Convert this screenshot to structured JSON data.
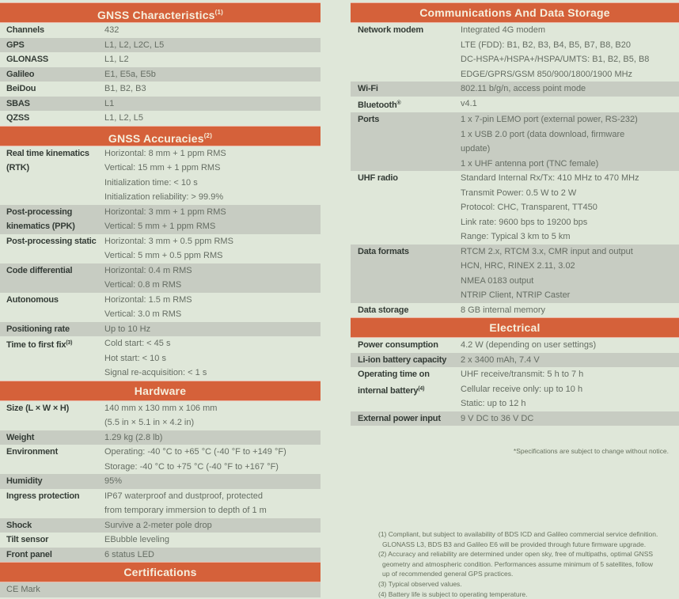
{
  "page": {
    "colors": {
      "bg": "#dfe7d9",
      "accent": "#d5613a",
      "header_text": "#f6efdd",
      "shaded_row": "#c7ccc2",
      "label": "#343c36",
      "value": "#656d63",
      "footnote": "#68725f"
    }
  },
  "left_column": {
    "sections": [
      {
        "title": "GNSS Characteristics",
        "title_sup": "(1)",
        "rows": [
          {
            "label": "Channels",
            "values": [
              "432"
            ],
            "shaded": false
          },
          {
            "label": "GPS",
            "values": [
              "L1, L2, L2C, L5"
            ],
            "shaded": true
          },
          {
            "label": "GLONASS",
            "values": [
              "L1, L2"
            ],
            "shaded": false
          },
          {
            "label": "Galileo",
            "values": [
              "E1, E5a, E5b"
            ],
            "shaded": true
          },
          {
            "label": "BeiDou",
            "values": [
              "B1, B2, B3"
            ],
            "shaded": false
          },
          {
            "label": "SBAS",
            "values": [
              "L1"
            ],
            "shaded": true
          },
          {
            "label": "QZSS",
            "values": [
              "L1, L2, L5"
            ],
            "shaded": false
          }
        ]
      },
      {
        "title": "GNSS Accuracies",
        "title_sup": "(2)",
        "rows": [
          {
            "label": "Real time kinematics (RTK)",
            "values": [
              "Horizontal: 8 mm + 1 ppm RMS",
              "Vertical: 15 mm + 1 ppm RMS",
              "Initialization time: < 10 s",
              "Initialization reliability: > 99.9%"
            ],
            "shaded": false
          },
          {
            "label": "Post-processing kinematics (PPK)",
            "values": [
              "Horizontal: 3 mm + 1 ppm RMS",
              "Vertical: 5 mm + 1 ppm RMS"
            ],
            "shaded": true
          },
          {
            "label": "Post-processing static",
            "values": [
              "Horizontal: 3 mm + 0.5 ppm RMS",
              "Vertical: 5 mm + 0.5 ppm RMS"
            ],
            "shaded": false
          },
          {
            "label": "Code differential",
            "values": [
              "Horizontal: 0.4 m RMS",
              "Vertical: 0.8 m RMS"
            ],
            "shaded": true
          },
          {
            "label": "Autonomous",
            "values": [
              "Horizontal: 1.5 m RMS",
              "Vertical: 3.0 m RMS"
            ],
            "shaded": false
          },
          {
            "label": "Positioning rate",
            "values": [
              "Up to 10 Hz"
            ],
            "shaded": true
          },
          {
            "label": "Time to first fix",
            "label_sup": "(3)",
            "values": [
              "Cold start: < 45 s",
              "Hot start: < 10 s",
              "Signal re-acquisition: < 1 s"
            ],
            "shaded": false
          }
        ]
      },
      {
        "title": "Hardware",
        "rows": [
          {
            "label": "Size (L × W × H)",
            "values": [
              "140 mm x 130 mm x 106 mm",
              "(5.5 in × 5.1 in × 4.2 in)"
            ],
            "shaded": false
          },
          {
            "label": "Weight",
            "values": [
              "1.29 kg (2.8 lb)"
            ],
            "shaded": true
          },
          {
            "label": "Environment",
            "values": [
              "Operating: -40 °C to +65 °C (-40 °F to +149 °F)",
              "Storage: -40 °C to +75 °C (-40 °F to +167 °F)"
            ],
            "shaded": false
          },
          {
            "label": "Humidity",
            "values": [
              "95%"
            ],
            "shaded": true
          },
          {
            "label": "Ingress protection",
            "values": [
              "IP67 waterproof and dustproof, protected",
              "from temporary immersion to depth of 1 m"
            ],
            "shaded": false
          },
          {
            "label": "Shock",
            "values": [
              "Survive a 2-meter pole drop"
            ],
            "shaded": true
          },
          {
            "label": "Tilt sensor",
            "values": [
              "EBubble leveling"
            ],
            "shaded": false
          },
          {
            "label": "Front panel",
            "values": [
              "6 status LED"
            ],
            "shaded": true
          }
        ]
      },
      {
        "title": "Certifications",
        "rows": [
          {
            "label": "",
            "values": [
              "CE Mark"
            ],
            "shaded": true,
            "full_width": true
          }
        ]
      }
    ]
  },
  "right_column": {
    "sections": [
      {
        "title": "Communications And Data Storage",
        "rows": [
          {
            "label": "Network modem",
            "values": [
              "Integrated 4G modem",
              "LTE (FDD): B1, B2, B3, B4, B5, B7, B8, B20",
              "DC-HSPA+/HSPA+/HSPA/UMTS: B1, B2, B5, B8",
              "EDGE/GPRS/GSM 850/900/1800/1900 MHz"
            ],
            "shaded": false
          },
          {
            "label": "Wi-Fi",
            "values": [
              "802.11 b/g/n, access point mode"
            ],
            "shaded": true
          },
          {
            "label": "Bluetooth",
            "label_sup": "®",
            "values": [
              "v4.1"
            ],
            "shaded": false
          },
          {
            "label": "Ports",
            "values": [
              "1 x 7-pin LEMO port (external power, RS-232)",
              "1 x USB 2.0 port (data download, firmware",
              "update)",
              "1 x UHF antenna port (TNC female)"
            ],
            "shaded": true
          },
          {
            "label": "UHF radio",
            "values": [
              "Standard Internal Rx/Tx: 410 MHz to 470 MHz",
              "Transmit Power: 0.5 W to 2 W",
              "Protocol: CHC, Transparent, TT450",
              "Link rate: 9600 bps to 19200 bps",
              "Range: Typical 3 km to 5 km"
            ],
            "shaded": false
          },
          {
            "label": "Data formats",
            "values": [
              "RTCM 2.x,  RTCM 3.x, CMR input and output",
              "HCN, HRC, RINEX 2.11, 3.02",
              "NMEA 0183 output",
              "NTRIP Client, NTRIP Caster"
            ],
            "shaded": true
          },
          {
            "label": "Data storage",
            "values": [
              "8 GB internal memory"
            ],
            "shaded": false
          }
        ]
      },
      {
        "title": "Electrical",
        "rows": [
          {
            "label": "Power consumption",
            "values": [
              "4.2 W (depending on user settings)"
            ],
            "shaded": false
          },
          {
            "label": "Li-ion battery capacity",
            "values": [
              "2 x 3400 mAh, 7.4 V"
            ],
            "shaded": true
          },
          {
            "label": "Operating time on internal battery",
            "label_sup": "(4)",
            "values": [
              "UHF receive/transmit: 5 h to 7 h",
              "Cellular receive only: up to 10 h",
              "Static: up to 12 h"
            ],
            "shaded": false
          },
          {
            "label": "External power input",
            "values": [
              "9 V DC to 36 V DC"
            ],
            "shaded": true
          }
        ]
      }
    ],
    "spec_note": "*Specifications are subject to change without notice.",
    "footnotes": [
      {
        "lines": [
          "(1) Compliant, but subject to availability of BDS ICD and Galileo commercial service definition.",
          "GLONASS L3, BDS B3 and Galileo E6 will be provided through future firmware upgrade."
        ]
      },
      {
        "lines": [
          "(2) Accuracy and reliability are determined under open sky, free of multipaths, optimal GNSS",
          "geometry and atmospheric condition. Performances assume minimum of 5 satellites, follow",
          "up of recommended general GPS practices."
        ]
      },
      {
        "lines": [
          "(3) Typical observed values."
        ]
      },
      {
        "lines": [
          "(4) Battery life is subject to operating temperature."
        ]
      }
    ]
  }
}
